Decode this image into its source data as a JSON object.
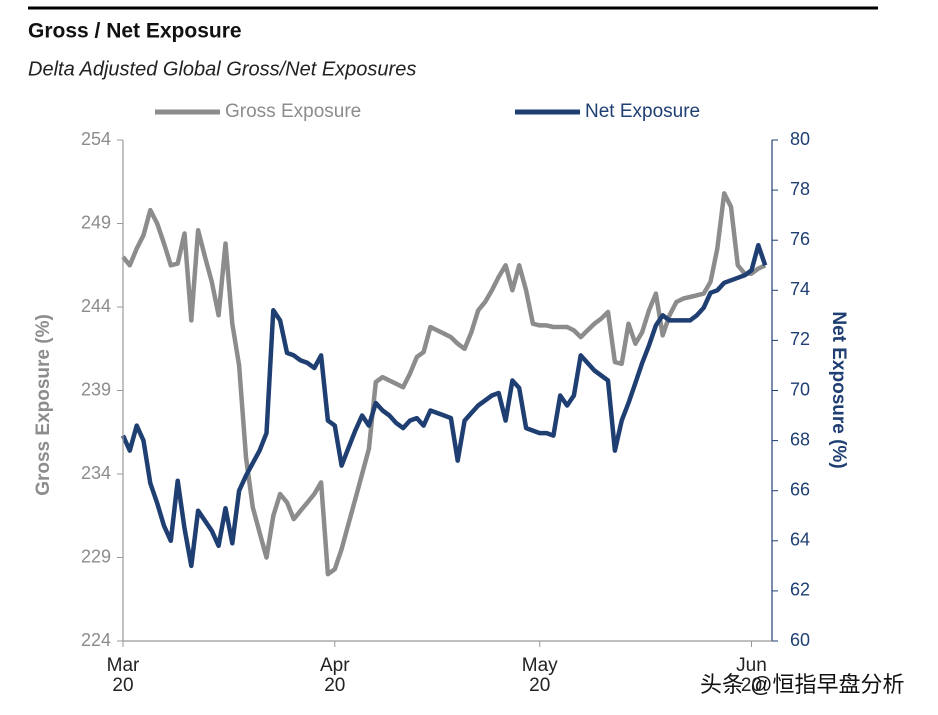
{
  "chart_data": {
    "type": "line",
    "title": "Gross / Net Exposure",
    "subtitle": "Delta Adjusted Global Gross/Net Exposures",
    "y_label": "Gross Exposure (%)",
    "y2_label": "Net Exposure (%)",
    "watermark": "头条 @恒指早盘分析",
    "x": [
      0,
      1,
      2,
      3,
      4,
      5,
      6,
      7,
      8,
      9,
      10,
      11,
      12,
      13,
      14,
      15,
      16,
      17,
      18,
      19,
      20,
      21,
      22,
      23,
      24,
      25,
      26,
      27,
      28,
      29,
      30,
      31,
      32,
      33,
      34,
      35,
      36,
      37,
      38,
      39,
      40,
      41,
      42,
      43,
      44,
      45,
      46,
      47,
      48,
      49,
      50,
      51,
      52,
      53,
      54,
      55,
      56,
      57,
      58,
      59,
      60,
      61,
      62,
      63,
      64,
      65,
      66,
      67,
      68,
      69,
      70,
      71,
      72,
      73,
      74,
      75,
      76,
      77,
      78,
      79,
      80,
      81,
      82,
      83,
      84,
      85,
      86,
      87,
      88,
      89,
      90,
      91,
      92,
      93,
      94
    ],
    "xlim": [
      0,
      95
    ],
    "xticks": [
      {
        "value": 0,
        "label": "Mar 20"
      },
      {
        "value": 31,
        "label": "Apr 20"
      },
      {
        "value": 61,
        "label": "May 20"
      },
      {
        "value": 92,
        "label": "Jun 20"
      }
    ],
    "ylim": [
      224,
      254
    ],
    "yticks": [
      224,
      229,
      234,
      239,
      244,
      249,
      254
    ],
    "y2lim": [
      60,
      80
    ],
    "y2ticks": [
      60,
      62,
      64,
      66,
      68,
      70,
      72,
      74,
      76,
      78,
      80
    ],
    "series": [
      {
        "name": "Gross Exposure",
        "color": "#8c8c8c",
        "values": [
          247.0,
          246.5,
          247.5,
          248.3,
          249.8,
          249.0,
          247.8,
          246.5,
          246.6,
          248.4,
          243.2,
          248.6,
          247.0,
          245.5,
          243.5,
          247.8,
          243.0,
          240.5,
          235.0,
          232.0,
          230.5,
          229.0,
          231.5,
          232.8,
          232.3,
          231.3,
          231.8,
          232.3,
          232.8,
          233.5,
          228.0,
          228.3,
          229.5,
          231.0,
          232.5,
          234.0,
          235.5,
          239.5,
          239.8,
          239.6,
          239.4,
          239.2,
          240.0,
          241.0,
          241.3,
          242.8,
          242.6,
          242.4,
          242.2,
          241.8,
          241.5,
          242.5,
          243.8,
          244.3,
          245.0,
          245.8,
          246.5,
          245.0,
          246.5,
          245.0,
          243.0,
          242.9,
          242.9,
          242.8,
          242.8,
          242.8,
          242.6,
          242.2,
          242.6,
          243.0,
          243.3,
          243.7,
          240.7,
          240.6,
          243.0,
          241.8,
          242.5,
          243.8,
          244.8,
          242.3,
          243.5,
          244.3,
          244.5,
          244.6,
          244.7,
          244.8,
          245.5,
          247.5,
          250.8,
          250.0,
          246.5,
          246.0,
          246.0,
          246.3,
          246.5
        ]
      },
      {
        "name": "Net Exposure",
        "color": "#1f3f73",
        "axis": "y2",
        "values": [
          68.2,
          67.6,
          68.6,
          68.0,
          66.3,
          65.5,
          64.6,
          64.0,
          66.4,
          64.5,
          63.0,
          65.2,
          64.8,
          64.4,
          63.8,
          65.3,
          63.9,
          66.0,
          66.6,
          67.1,
          67.6,
          68.3,
          73.2,
          72.8,
          71.5,
          71.4,
          71.2,
          71.1,
          70.9,
          71.4,
          68.8,
          68.6,
          67.0,
          67.7,
          68.4,
          69.0,
          68.6,
          69.5,
          69.2,
          69.0,
          68.7,
          68.5,
          68.8,
          68.9,
          68.6,
          69.2,
          69.1,
          69.0,
          68.9,
          67.2,
          68.8,
          69.1,
          69.4,
          69.6,
          69.8,
          69.9,
          68.8,
          70.4,
          70.1,
          68.5,
          68.4,
          68.3,
          68.3,
          68.2,
          69.8,
          69.4,
          69.8,
          71.4,
          71.1,
          70.8,
          70.6,
          70.4,
          67.6,
          68.8,
          69.5,
          70.3,
          71.1,
          71.8,
          72.6,
          73.0,
          72.8,
          72.8,
          72.8,
          72.8,
          73.0,
          73.3,
          73.9,
          74.0,
          74.3,
          74.4,
          74.5,
          74.6,
          74.8,
          75.8,
          75.0
        ]
      }
    ],
    "legend": "top",
    "grid": false
  }
}
